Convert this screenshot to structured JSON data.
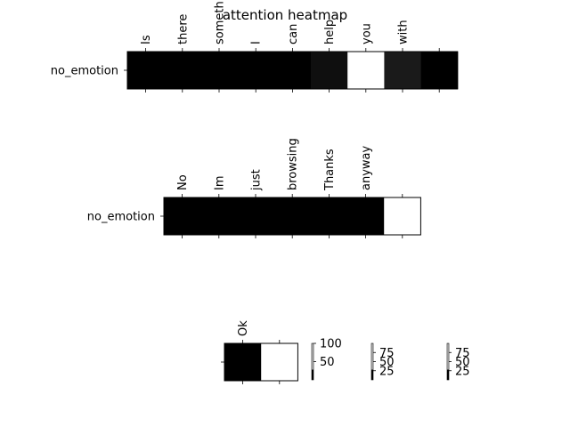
{
  "chart_data": {
    "type": "heatmap",
    "title": "attention heatmap",
    "colormap": "gray",
    "panels": [
      {
        "row_label": "no_emotion",
        "x_tick_labels": [
          "Is",
          "there",
          "something",
          "I",
          "can",
          "help",
          "you",
          "with",
          ""
        ],
        "values": [
          0,
          0,
          0,
          0,
          0,
          6,
          100,
          10,
          0
        ]
      },
      {
        "row_label": "no_emotion",
        "x_tick_labels": [
          "No",
          "Im",
          "just",
          "browsing",
          "Thanks",
          "anyway",
          ""
        ],
        "values": [
          0,
          0,
          0,
          0,
          0,
          0,
          100
        ]
      },
      {
        "row_label": "",
        "x_tick_labels": [
          "Ok",
          ""
        ],
        "values": [
          0,
          100
        ]
      }
    ],
    "colorbars": [
      {
        "ticks": [
          50,
          100
        ],
        "range": [
          0,
          100
        ]
      },
      {
        "ticks": [
          25,
          50,
          75
        ],
        "range": [
          0,
          100
        ]
      },
      {
        "ticks": [
          25,
          50,
          75
        ],
        "range": [
          0,
          100
        ]
      }
    ]
  }
}
